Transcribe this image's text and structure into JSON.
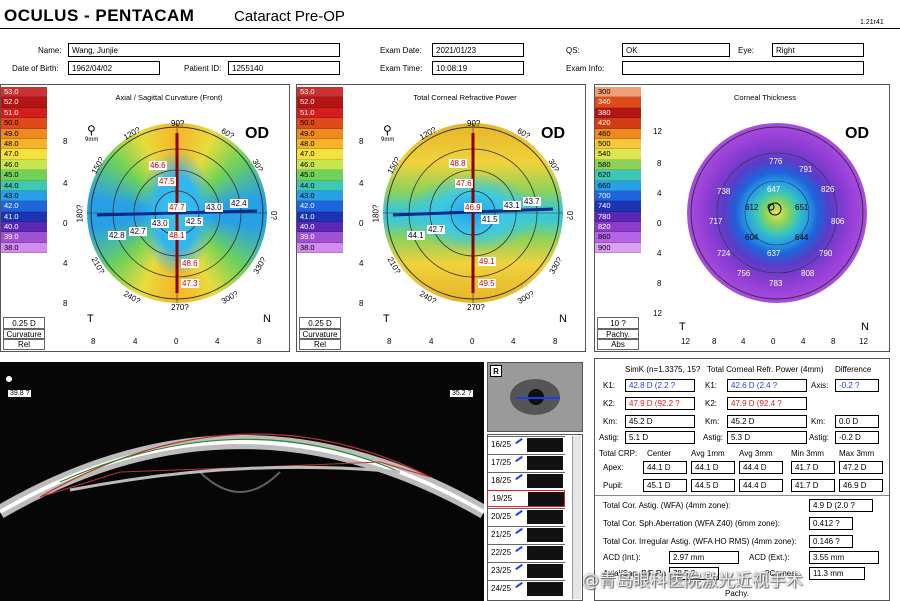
{
  "header": {
    "brand": "OCULUS - PENTACAM",
    "mode": "Cataract Pre-OP",
    "version": "1.21r41"
  },
  "patient": {
    "name_label": "Name:",
    "name": "Wang, Junjie",
    "dob_label": "Date of Birth:",
    "dob": "1962/04/02",
    "pid_label": "Patient ID:",
    "pid": "1255140",
    "exam_date_label": "Exam Date:",
    "exam_date": "2021/01/23",
    "exam_time_label": "Exam Time:",
    "exam_time": "10:08:19",
    "qs_label": "QS:",
    "qs": "OK",
    "eye_label": "Eye:",
    "eye": "Right",
    "exam_info_label": "Exam Info:",
    "exam_info": ""
  },
  "maps": {
    "eye_tag": "OD",
    "zoom_label": "9mm",
    "axial": {
      "title": "Axial / Sagittal Curvature (Front)",
      "scale": [
        "53.0",
        "52.0",
        "51.0",
        "50.0",
        "49.0",
        "48.0",
        "47.0",
        "46.0",
        "45.0",
        "44.0",
        "43.0",
        "42.0",
        "41.0",
        "40.0",
        "39.0",
        "38.0"
      ],
      "step": "0.25 D",
      "unit1": "Curvature",
      "unit2": "Rel",
      "values": [
        "46.6",
        "47.5",
        "47.7",
        "42.4",
        "43.0",
        "42.5",
        "43.0",
        "42.7",
        "42.8",
        "48.1",
        "48.6",
        "47.3"
      ],
      "angles": [
        "90?",
        "120?",
        "60?",
        "150?",
        "30?",
        "180?",
        "0?",
        "210?",
        "330?",
        "240?",
        "300?",
        "270?"
      ]
    },
    "refr": {
      "title": "Total Corneal Refractive Power",
      "scale": [
        "53.0",
        "52.0",
        "51.0",
        "50.0",
        "49.0",
        "48.0",
        "47.0",
        "46.0",
        "45.0",
        "44.0",
        "43.0",
        "42.0",
        "41.0",
        "40.0",
        "39.0",
        "38.0"
      ],
      "step": "0.25 D",
      "unit1": "Curvature",
      "unit2": "Rel",
      "values": [
        "48.8",
        "47.6",
        "46.9",
        "43.7",
        "43.1",
        "41.5",
        "42.7",
        "44.1",
        "49.1",
        "49.5"
      ],
      "angles": [
        "90?",
        "120?",
        "60?",
        "150?",
        "30?",
        "180?",
        "0?",
        "210?",
        "330?",
        "240?",
        "300?",
        "270?"
      ]
    },
    "thick": {
      "title": "Corneal Thickness",
      "scale": [
        "300",
        "340",
        "380",
        "420",
        "460",
        "500",
        "540",
        "580",
        "620",
        "660",
        "700",
        "740",
        "780",
        "820",
        "860",
        "900"
      ],
      "step": "10 ?",
      "unit1": "Pachy.",
      "unit2": "Abs",
      "values": [
        "776",
        "791",
        "738",
        "647",
        "826",
        "612",
        "651",
        "717",
        "806",
        "604",
        "644",
        "724",
        "637",
        "790",
        "756",
        "808",
        "783"
      ],
      "axis_y": [
        "12",
        "8",
        "4",
        "0",
        "4",
        "8",
        "12"
      ],
      "axis_x": [
        "12",
        "8",
        "4",
        "0",
        "4",
        "8",
        "12"
      ]
    },
    "axis_y": [
      "8",
      "4",
      "0",
      "4",
      "8"
    ],
    "axis_x": [
      "8",
      "4",
      "0",
      "4",
      "8"
    ],
    "t_label": "T",
    "n_label": "N"
  },
  "scheimpflug": {
    "left_angle": "39.8 ?",
    "right_angle": "35.2 ?",
    "r_button": "R",
    "thumbs": [
      "16/25",
      "17/25",
      "18/25",
      "19/25",
      "20/25",
      "21/25",
      "22/25",
      "23/25",
      "24/25"
    ],
    "selected": "19/25"
  },
  "results": {
    "simk_header": "SimK (n=1.3375, 15?",
    "tcrp_header": "Total Corneal Refr. Power (4mm)",
    "diff_header": "Difference",
    "k1_label": "K1:",
    "k1_sim": "42.8 D (2.2 ?",
    "k1_tcrp": "42.6 D (2.4 ?",
    "axis_label": "Axis:",
    "axis_diff": "-0.2 ?",
    "k2_label": "K2:",
    "k2_sim": "47.9 D (92.2 ?",
    "k2_tcrp": "47.9 D (92.4 ?",
    "km_label": "Km:",
    "km_sim": "45.2 D",
    "km_tcrp": "45.2 D",
    "km_diff": "0.0 D",
    "astig_label": "Astig:",
    "astig_sim": "5.1 D",
    "astig_tcrp": "5.3 D",
    "astig_diff": "-0.2 D",
    "crp_label": "Total CRP:",
    "crp_cols": [
      "Center",
      "Avg 1mm",
      "Avg 3mm",
      "Min 3mm",
      "Max 3mm"
    ],
    "apex_label": "Apex:",
    "apex": [
      "44.1 D",
      "44.1 D",
      "44.4 D",
      "41.7 D",
      "47.2 D"
    ],
    "pupil_label": "Pupil:",
    "pupil": [
      "45.1 D",
      "44.5 D",
      "44.4 D",
      "41.7 D",
      "46.9 D"
    ],
    "tca_label": "Total Cor. Astig. (WFA) (4mm zone):",
    "tca": "4.9 D (2.0 ?",
    "tcsa_label": "Total Cor. Sph.Aberration (WFA Z40) (6mm zone):",
    "tcsa": "0.412 ?",
    "tci_label": "Total Cor. Irregular Astig. (WFA HO RMS) (4mm zone):",
    "tci": "0.146 ?",
    "acd_int_label": "ACD (Int.):",
    "acd_int": "2.97 mm",
    "acd_ext_label": "ACD (Ext.):",
    "acd_ext": "3.55 mm",
    "axial_ratio_label": "Axial/Sag. B/F Ra",
    "axial_ratio": "78.5 ?",
    "cornea_label": "?Cornea:",
    "cornea": "11.3 mm",
    "pachy_label": "Pachy."
  },
  "watermark": "@青岛眼科医院激光近视手术"
}
